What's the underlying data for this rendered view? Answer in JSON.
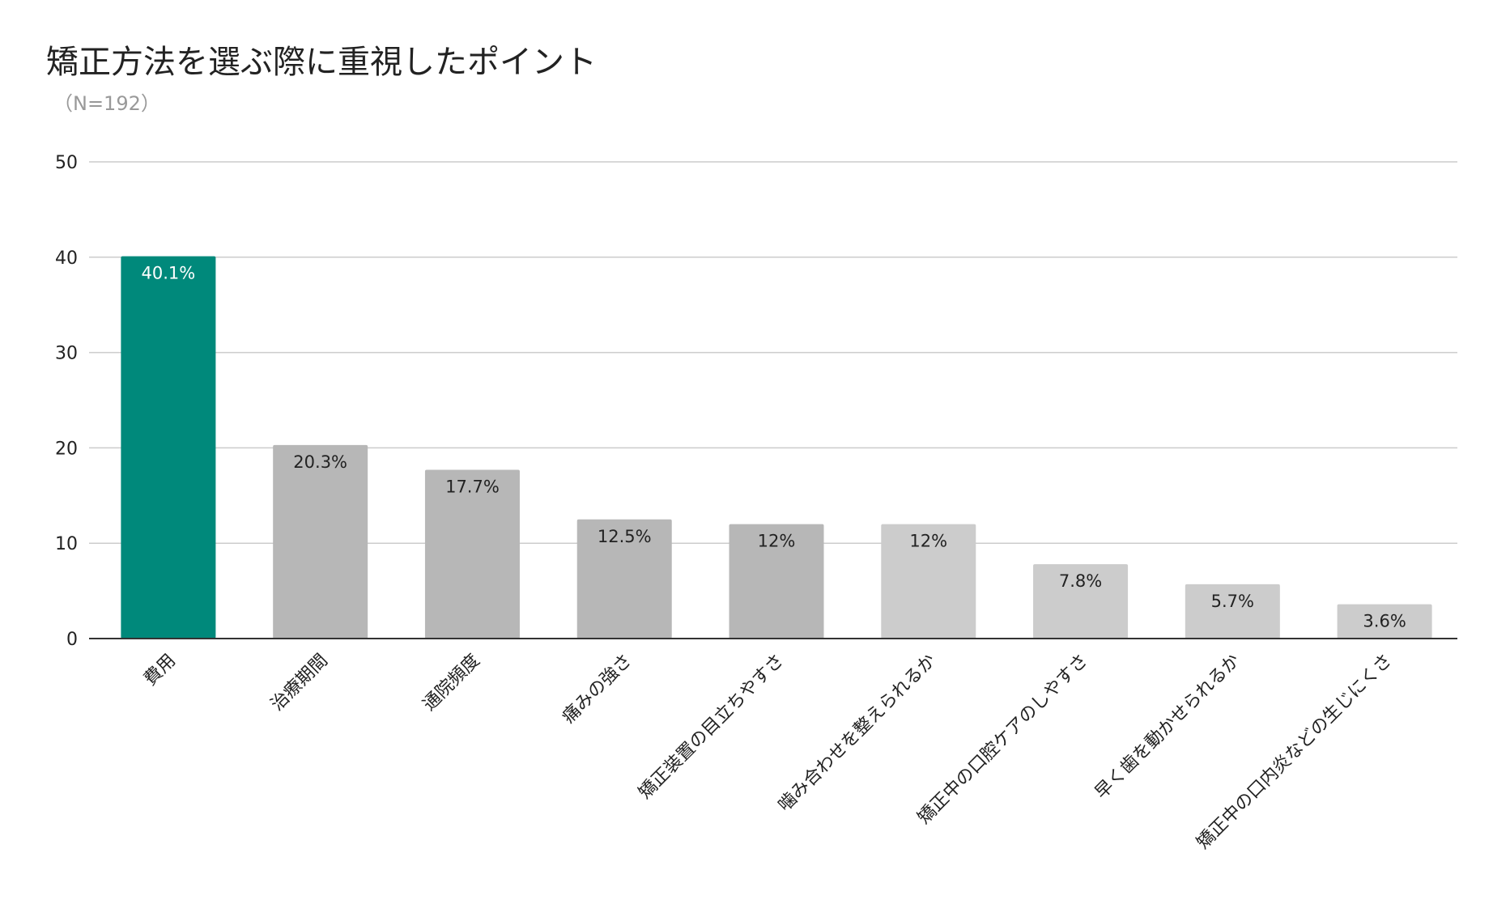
{
  "chart_data": {
    "type": "bar",
    "title": "矯正方法を選ぶ際に重視したポイント",
    "subtitle": "（N=192）",
    "xlabel": "",
    "ylabel": "",
    "ylim": [
      0,
      50
    ],
    "yticks": [
      0,
      10,
      20,
      30,
      40,
      50
    ],
    "grid": true,
    "legend": "none",
    "categories": [
      "費用",
      "治療期間",
      "通院頻度",
      "痛みの強さ",
      "矯正装置の目立ちやすさ",
      "噛み合わせを整えられるか",
      "矯正中の口腔ケアのしやすさ",
      "早く歯を動かせられるか",
      "矯正中の口内炎などの生じにくさ"
    ],
    "values": [
      40.1,
      20.3,
      17.7,
      12.5,
      12,
      12,
      7.8,
      5.7,
      3.6
    ],
    "data_labels": [
      "40.1%",
      "20.3%",
      "17.7%",
      "12.5%",
      "12%",
      "12%",
      "7.8%",
      "5.7%",
      "3.6%"
    ],
    "bar_colors": [
      "#00897b",
      "#b7b7b7",
      "#b7b7b7",
      "#b7b7b7",
      "#b7b7b7",
      "#cccccc",
      "#cccccc",
      "#cccccc",
      "#cccccc"
    ],
    "label_colors": [
      "#ffffff",
      "#222222",
      "#222222",
      "#222222",
      "#222222",
      "#222222",
      "#222222",
      "#222222",
      "#222222"
    ]
  }
}
